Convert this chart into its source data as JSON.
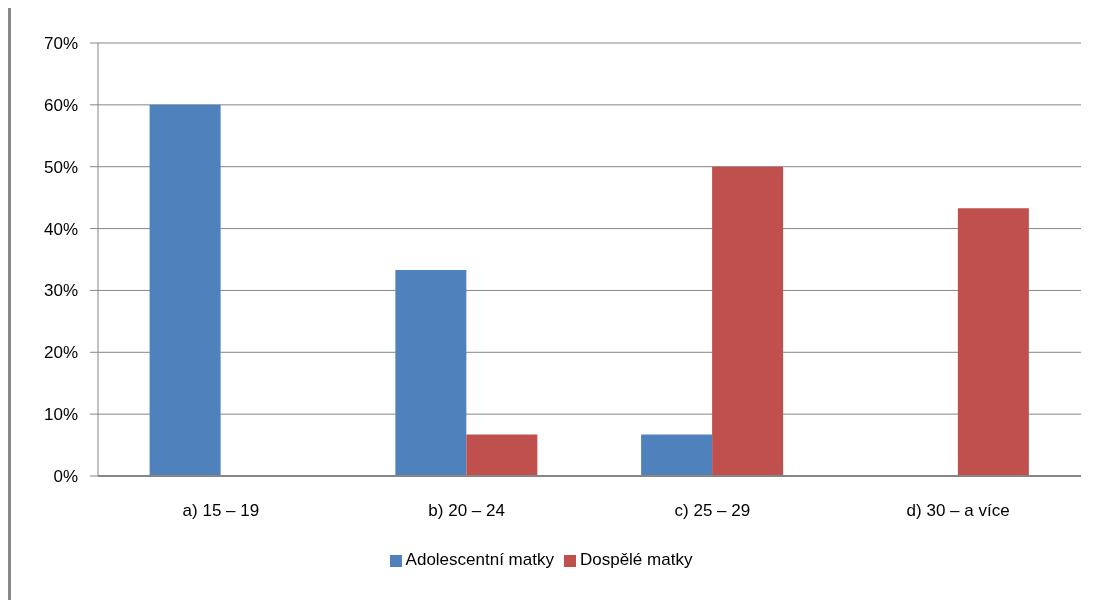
{
  "chart_data": {
    "type": "bar",
    "categories": [
      "a) 15 – 19",
      "b) 20 – 24",
      "c) 25 – 29",
      "d) 30 – a více"
    ],
    "series": [
      {
        "name": "Adolescentní matky",
        "color": "#4f81bd",
        "values": [
          60,
          33.3,
          6.7,
          0
        ]
      },
      {
        "name": "Dospělé matky",
        "color": "#c0504d",
        "values": [
          0,
          6.7,
          50,
          43.3
        ]
      }
    ],
    "ylim": [
      0,
      70
    ],
    "yticks": [
      {
        "value": 0,
        "label": "0%"
      },
      {
        "value": 10,
        "label": "10%"
      },
      {
        "value": 20,
        "label": "20%"
      },
      {
        "value": 30,
        "label": "30%"
      },
      {
        "value": 40,
        "label": "40%"
      },
      {
        "value": 50,
        "label": "50%"
      },
      {
        "value": 60,
        "label": "60%"
      },
      {
        "value": 70,
        "label": "70%"
      }
    ],
    "grid": "y",
    "legend": "bottom"
  }
}
